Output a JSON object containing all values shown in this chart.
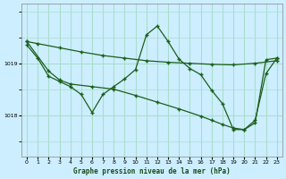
{
  "title": "Graphe pression niveau de la mer (hPa)",
  "bg_color": "#cceeff",
  "grid_color": "#aaddcc",
  "line_color": "#1a5e1a",
  "x_ticks": [
    0,
    1,
    2,
    3,
    4,
    5,
    6,
    7,
    8,
    9,
    10,
    11,
    12,
    13,
    14,
    15,
    16,
    17,
    18,
    19,
    20,
    21,
    22,
    23
  ],
  "ylim": [
    1017.2,
    1020.15
  ],
  "ytick_positions": [
    1018.0,
    1019.0
  ],
  "series1": {
    "x": [
      0,
      1,
      3,
      5,
      7,
      9,
      11,
      13,
      15,
      17,
      19,
      21,
      23
    ],
    "y": [
      1019.42,
      1019.38,
      1019.3,
      1019.22,
      1019.15,
      1019.1,
      1019.05,
      1019.02,
      1019.0,
      1018.98,
      1018.97,
      1019.0,
      1019.05
    ]
  },
  "series2": {
    "x": [
      0,
      1,
      2,
      3,
      4,
      5,
      6,
      7,
      8,
      9,
      10,
      11,
      12,
      13,
      14,
      15,
      16,
      17,
      18,
      19,
      20,
      21,
      22,
      23
    ],
    "y": [
      1019.35,
      1019.1,
      1018.75,
      1018.65,
      1018.55,
      1018.4,
      1018.05,
      1018.4,
      1018.55,
      1018.7,
      1018.88,
      1019.55,
      1019.72,
      1019.42,
      1019.08,
      1018.9,
      1018.78,
      1018.48,
      1018.22,
      1017.72,
      1017.72,
      1017.85,
      1019.07,
      1019.1
    ]
  },
  "series3": {
    "x": [
      0,
      2,
      3,
      4,
      6,
      8,
      10,
      12,
      14,
      16,
      17,
      18,
      19,
      20,
      21,
      22,
      23
    ],
    "y": [
      1019.42,
      1018.85,
      1018.68,
      1018.6,
      1018.55,
      1018.5,
      1018.38,
      1018.25,
      1018.12,
      1017.98,
      1017.9,
      1017.82,
      1017.75,
      1017.72,
      1017.9,
      1018.8,
      1019.1
    ]
  }
}
